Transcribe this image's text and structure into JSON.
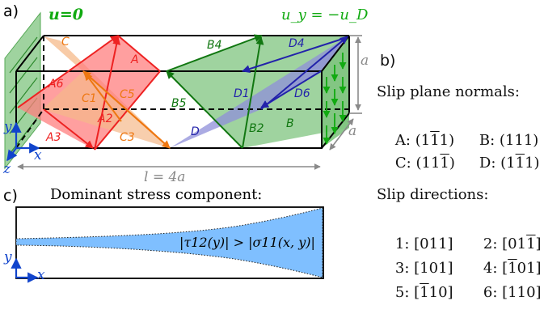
{
  "panel_a": {
    "label": "a)",
    "bc_left": "u=0",
    "bc_right": "u_y = −u_D",
    "length_label": "l = 4a",
    "height_label": "a",
    "depth_label": "a",
    "axes": {
      "x": "x",
      "y": "y",
      "z": "z"
    },
    "plane_labels": {
      "C": "C",
      "A": "A",
      "B4": "B4",
      "D4": "D4",
      "A6": "A6",
      "C1": "C1",
      "C5": "C5",
      "A2": "A2",
      "A3": "A3",
      "C3": "C3",
      "B5": "B5",
      "D1": "D1",
      "D6": "D6",
      "D": "D",
      "B2": "B2",
      "B": "B"
    },
    "colors": {
      "A": "#ee2222",
      "B": "#117711",
      "C": "#ee7711",
      "D": "#2222aa",
      "A_fill": "#ff7f7f",
      "B_fill": "#7fc47f",
      "C_fill": "#f5b98a",
      "D_fill": "#8f8fd9",
      "bc_green": "#11aa11",
      "axis": "#1144cc",
      "dim": "#8a8a8a"
    }
  },
  "panel_b": {
    "label": "b)",
    "normals_title": "Slip plane normals:",
    "normals": [
      {
        "name": "A:",
        "vec": "(1",
        "bar": "1",
        "end": "1)",
        "bar_pos": 1
      },
      {
        "name": "B:",
        "vec": "(111)"
      },
      {
        "name": "C:",
        "vec": "(11",
        "bar": "1",
        "end": ")",
        "bar_pos": 2
      },
      {
        "name": "D:",
        "vec": "(1",
        "bar": "1",
        "end": "1)",
        "bar_pos": 1
      }
    ],
    "directions_title": "Slip directions:",
    "directions": [
      {
        "name": "1:",
        "vec": "[011]"
      },
      {
        "name": "2:",
        "vec": "[01",
        "bar": "1",
        "end": "]"
      },
      {
        "name": "3:",
        "vec": "[101]"
      },
      {
        "name": "4:",
        "vec": "[",
        "bar": "1",
        "end": "01]"
      },
      {
        "name": "5:",
        "vec": "[",
        "bar": "1",
        "end": "10]"
      },
      {
        "name": "6:",
        "vec": "[110]"
      }
    ]
  },
  "panel_c": {
    "label": "c)",
    "title": "Dominant stress component:",
    "region_label": "|τ12(y)| > |σ11(x, y)|",
    "axes": {
      "x": "x",
      "y": "y"
    },
    "fill": "#7fbfff"
  }
}
